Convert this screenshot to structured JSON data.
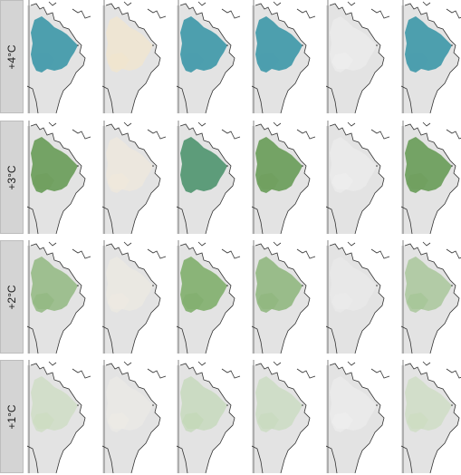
{
  "rows": [
    {
      "label": "+4°C",
      "fills": [
        "#4d9fae",
        "#f7e7c7",
        "#4d9fae",
        "#4d9fae",
        "#ffffff",
        "#4d9fae"
      ],
      "strength": [
        1.0,
        0.55,
        1.0,
        1.0,
        0.0,
        1.0
      ]
    },
    {
      "label": "+3°C",
      "fills": [
        "#6e9f5e",
        "#f7ecd6",
        "#5d9c7a",
        "#6e9f5e",
        "#ffffff",
        "#6e9f5e"
      ],
      "strength": [
        0.95,
        0.45,
        1.0,
        0.95,
        0.0,
        0.95
      ]
    },
    {
      "label": "+2°C",
      "fills": [
        "#8cb57a",
        "#f6efe0",
        "#7fae6c",
        "#8cb57a",
        "#f7f7f7",
        "#9cc08b"
      ],
      "strength": [
        0.8,
        0.4,
        0.9,
        0.85,
        0.15,
        0.7
      ]
    },
    {
      "label": "+1°C",
      "fills": [
        "#c4dbb7",
        "#faf5ea",
        "#bad5ad",
        "#bfd9b2",
        "#ffffff",
        "#c4dbb7"
      ],
      "strength": [
        0.55,
        0.3,
        0.6,
        0.55,
        0.0,
        0.55
      ]
    }
  ],
  "colors": {
    "land": "#e3e3e3",
    "coast": "#333333",
    "strip": "#d4d4d4"
  }
}
